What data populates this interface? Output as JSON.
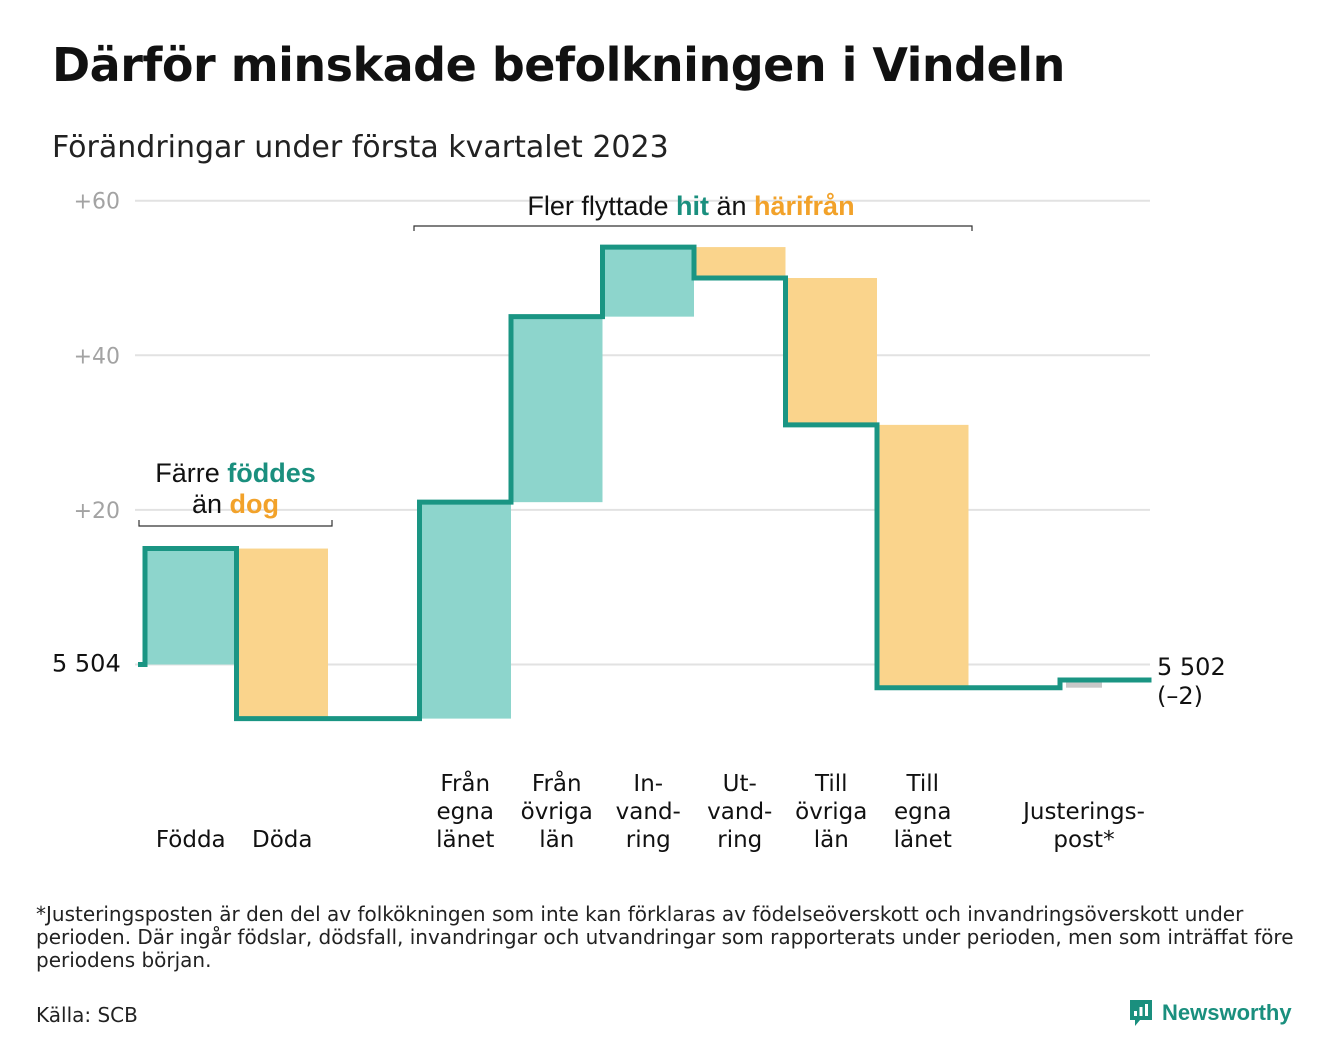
{
  "title": "Därför minskade befolkningen i Vindeln",
  "subtitle": "Förändringar under första kvartalet 2023",
  "chart_data": {
    "type": "waterfall",
    "y_ticks": [
      {
        "value": 20,
        "label": "+20"
      },
      {
        "value": 40,
        "label": "+40"
      },
      {
        "value": 60,
        "label": "+60"
      }
    ],
    "ylim": [
      -12,
      62
    ],
    "start": {
      "value": 0,
      "label": "5 504"
    },
    "end": {
      "value": -2,
      "label": "5 502",
      "change_label": "(–2)"
    },
    "steps": [
      {
        "label_lines": [
          "Födda"
        ],
        "change": 15,
        "kind": "gain"
      },
      {
        "label_lines": [
          "Döda"
        ],
        "change": -22,
        "kind": "loss"
      },
      {
        "label_lines": [],
        "change": 0,
        "kind": "gap"
      },
      {
        "label_lines": [
          "Från",
          "egna",
          "länet"
        ],
        "change": 28,
        "kind": "gain"
      },
      {
        "label_lines": [
          "Från",
          "övriga",
          "län"
        ],
        "change": 24,
        "kind": "gain"
      },
      {
        "label_lines": [
          "In-",
          "vand-",
          "ring"
        ],
        "change": 9,
        "kind": "gain"
      },
      {
        "label_lines": [
          "Ut-",
          "vand-",
          "ring"
        ],
        "change": -4,
        "kind": "loss"
      },
      {
        "label_lines": [
          "Till",
          "övriga",
          "län"
        ],
        "change": -19,
        "kind": "loss"
      },
      {
        "label_lines": [
          "Till",
          "egna",
          "länet"
        ],
        "change": -34,
        "kind": "loss"
      },
      {
        "label_lines": [],
        "change": 0,
        "kind": "gap"
      },
      {
        "label_lines": [
          "Justerings-",
          "post*"
        ],
        "change": 1,
        "kind": "adjustment"
      }
    ],
    "annotations": [
      {
        "lines": [
          [
            {
              "text": "Färre ",
              "color": "plain"
            },
            {
              "text": "föddes",
              "color": "gain"
            }
          ],
          [
            {
              "text": "än ",
              "color": "plain"
            },
            {
              "text": "dog",
              "color": "loss"
            }
          ]
        ]
      },
      {
        "lines": [
          [
            {
              "text": "Fler flyttade ",
              "color": "plain"
            },
            {
              "text": "hit",
              "color": "gain"
            },
            {
              "text": " än ",
              "color": "plain"
            },
            {
              "text": "härifrån",
              "color": "loss"
            }
          ]
        ]
      }
    ],
    "colors": {
      "line": "#1a9583",
      "gain": "#8dd5cc",
      "loss": "#fad48c",
      "adjustment": "#c8c8c8",
      "gain_text": "#1a8f7e",
      "loss_text": "#f2a22a",
      "grid": "#e2e2e2",
      "tick_text": "#a3a3a3"
    }
  },
  "footnote": "*Justeringsposten är den del av folkökningen som inte kan förklaras av födelseöverskott och invandringsöverskott under perioden. Där ingår födslar, dödsfall, invandringar och utvandringar som rapporterats under perioden, men som inträffat före periodens början.",
  "source": "Källa: SCB",
  "brand": {
    "name": "Newsworthy",
    "icon": "newsworthy-logo-icon"
  }
}
